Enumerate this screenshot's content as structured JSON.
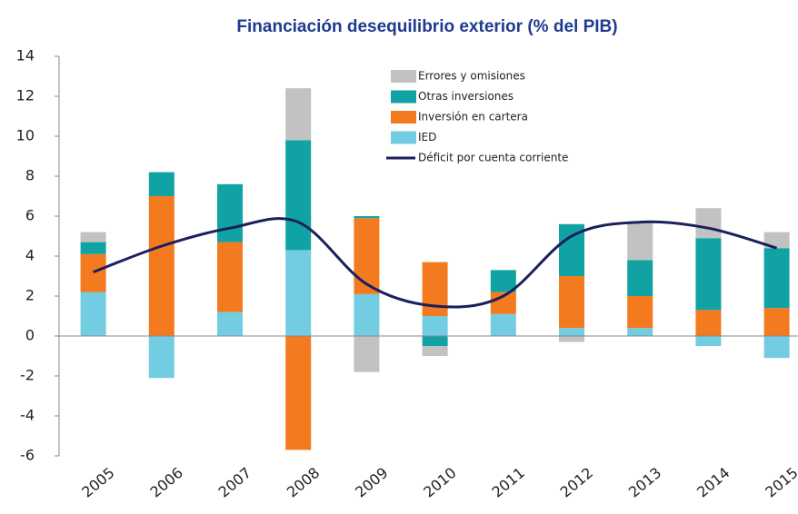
{
  "chart_data": {
    "type": "bar",
    "stacked": true,
    "title": "Financiación desequilibrio exterior (% del PIB)",
    "categories": [
      "2005",
      "2006",
      "2007",
      "2008",
      "2009",
      "2010",
      "2011",
      "2012",
      "2013",
      "2014",
      "2015"
    ],
    "series": [
      {
        "name": "IED",
        "color": "#72cde2",
        "values": [
          2.2,
          -2.1,
          1.2,
          4.3,
          2.1,
          1.0,
          1.1,
          0.4,
          0.4,
          -0.5,
          -1.1
        ]
      },
      {
        "name": "Inversión en cartera",
        "color": "#f47a1f",
        "values": [
          1.9,
          7.0,
          3.5,
          -5.7,
          3.8,
          2.7,
          1.1,
          2.6,
          1.6,
          1.3,
          1.4
        ]
      },
      {
        "name": "Otras inversiones",
        "color": "#11a3a3",
        "values": [
          0.6,
          1.2,
          2.9,
          5.5,
          0.1,
          -0.5,
          1.1,
          2.6,
          1.8,
          3.6,
          3.0
        ]
      },
      {
        "name": "Errores y omisiones",
        "color": "#c2c2c2",
        "values": [
          0.5,
          0,
          0,
          2.6,
          -1.8,
          -0.5,
          0,
          -0.3,
          1.9,
          1.5,
          0.8
        ]
      },
      {
        "name": "Déficit por cuenta corriente",
        "type": "line",
        "color": "#1b1f5c",
        "values": [
          3.2,
          4.5,
          5.4,
          5.7,
          2.6,
          1.5,
          2.0,
          5.0,
          5.7,
          5.4,
          4.4
        ]
      }
    ],
    "ylim": [
      -6,
      14
    ],
    "yticks": [
      -6,
      -4,
      -2,
      0,
      2,
      4,
      6,
      8,
      10,
      12,
      14
    ],
    "legend": "top"
  }
}
